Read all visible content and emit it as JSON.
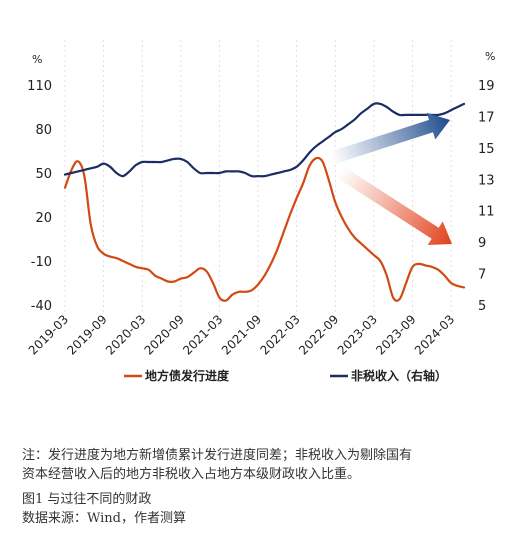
{
  "chart_data": {
    "type": "line",
    "left_unit": "%",
    "right_unit": "%",
    "y_left": {
      "ticks": [
        110,
        80,
        50,
        20,
        -10,
        -40
      ],
      "min": -40,
      "max": 110
    },
    "y_right": {
      "ticks": [
        19,
        17,
        15,
        13,
        11,
        9,
        7,
        5
      ],
      "min": 5,
      "max": 19
    },
    "x_labels": [
      "2019-03",
      "2019-09",
      "2020-03",
      "2020-09",
      "2021-03",
      "2021-09",
      "2022-03",
      "2022-09",
      "2023-03",
      "2023-09",
      "2024-03"
    ],
    "x_range": [
      "2019-03",
      "2024-05"
    ],
    "grid": "vertical dashed",
    "legend_position": "bottom",
    "series": [
      {
        "name": "地方债发行进度",
        "axis": "left",
        "color": "#d04a12",
        "x": [
          "2019-03",
          "2019-04",
          "2019-05",
          "2019-06",
          "2019-07",
          "2019-08",
          "2019-09",
          "2019-10",
          "2019-11",
          "2019-12",
          "2020-01",
          "2020-02",
          "2020-03",
          "2020-04",
          "2020-05",
          "2020-06",
          "2020-07",
          "2020-08",
          "2020-09",
          "2020-10",
          "2020-11",
          "2020-12",
          "2021-01",
          "2021-02",
          "2021-03",
          "2021-04",
          "2021-05",
          "2021-06",
          "2021-07",
          "2021-08",
          "2021-09",
          "2021-10",
          "2021-11",
          "2021-12",
          "2022-01",
          "2022-02",
          "2022-03",
          "2022-04",
          "2022-05",
          "2022-06",
          "2022-07",
          "2022-08",
          "2022-09",
          "2022-10",
          "2022-11",
          "2022-12",
          "2023-01",
          "2023-02",
          "2023-03",
          "2023-04",
          "2023-05",
          "2023-06",
          "2023-07",
          "2023-08",
          "2023-09",
          "2023-10",
          "2023-11",
          "2023-12",
          "2024-01",
          "2024-02",
          "2024-03",
          "2024-04",
          "2024-05"
        ],
        "values": [
          40,
          52,
          58,
          48,
          15,
          0,
          -5,
          -7,
          -8,
          -10,
          -12,
          -14,
          -15,
          -16,
          -20,
          -22,
          -24,
          -24,
          -22,
          -21,
          -18,
          -15,
          -17,
          -25,
          -35,
          -37,
          -33,
          -31,
          -31,
          -30,
          -26,
          -20,
          -12,
          -2,
          10,
          22,
          33,
          43,
          55,
          60,
          58,
          45,
          30,
          20,
          12,
          6,
          2,
          -2,
          -6,
          -10,
          -20,
          -35,
          -36,
          -25,
          -14,
          -12,
          -13,
          -14,
          -16,
          -20,
          -25,
          -27,
          -28
        ]
      },
      {
        "name": "非税收入（右轴）",
        "axis": "right",
        "color": "#1c2c66",
        "x": [
          "2019-03",
          "2019-04",
          "2019-05",
          "2019-06",
          "2019-07",
          "2019-08",
          "2019-09",
          "2019-10",
          "2019-11",
          "2019-12",
          "2020-01",
          "2020-02",
          "2020-03",
          "2020-04",
          "2020-05",
          "2020-06",
          "2020-07",
          "2020-08",
          "2020-09",
          "2020-10",
          "2020-11",
          "2020-12",
          "2021-01",
          "2021-02",
          "2021-03",
          "2021-04",
          "2021-05",
          "2021-06",
          "2021-07",
          "2021-08",
          "2021-09",
          "2021-10",
          "2021-11",
          "2021-12",
          "2022-01",
          "2022-02",
          "2022-03",
          "2022-04",
          "2022-05",
          "2022-06",
          "2022-07",
          "2022-08",
          "2022-09",
          "2022-10",
          "2022-11",
          "2022-12",
          "2023-01",
          "2023-02",
          "2023-03",
          "2023-04",
          "2023-05",
          "2023-06",
          "2023-07",
          "2023-08",
          "2023-09",
          "2023-10",
          "2023-11",
          "2023-12",
          "2024-01",
          "2024-02",
          "2024-03",
          "2024-04",
          "2024-05"
        ],
        "values": [
          13.3,
          13.4,
          13.5,
          13.6,
          13.7,
          13.8,
          14.0,
          13.8,
          13.4,
          13.2,
          13.5,
          13.9,
          14.1,
          14.1,
          14.1,
          14.1,
          14.2,
          14.3,
          14.3,
          14.1,
          13.7,
          13.4,
          13.4,
          13.4,
          13.4,
          13.5,
          13.5,
          13.5,
          13.4,
          13.2,
          13.2,
          13.2,
          13.3,
          13.4,
          13.5,
          13.6,
          13.8,
          14.2,
          14.7,
          15.1,
          15.4,
          15.7,
          16.0,
          16.2,
          16.5,
          16.8,
          17.2,
          17.5,
          17.8,
          17.8,
          17.6,
          17.3,
          17.1,
          17.1,
          17.1,
          17.1,
          17.1,
          17.1,
          17.1,
          17.2,
          17.4,
          17.6,
          17.8
        ]
      }
    ],
    "annotations": [
      {
        "type": "arrow",
        "direction": "up",
        "color": "#1c4a8c"
      },
      {
        "type": "arrow",
        "direction": "down",
        "color": "#e0401a"
      }
    ]
  },
  "notes": {
    "line1": "注：发行进度为地方新增债累计发行进度同差；非税收入为剔除国有",
    "line2": "资本经营收入后的地方非税收入占地方本级财政收入比重。"
  },
  "caption": {
    "figure": "图1  与过往不同的财政",
    "source": "数据来源：Wind，作者测算"
  }
}
